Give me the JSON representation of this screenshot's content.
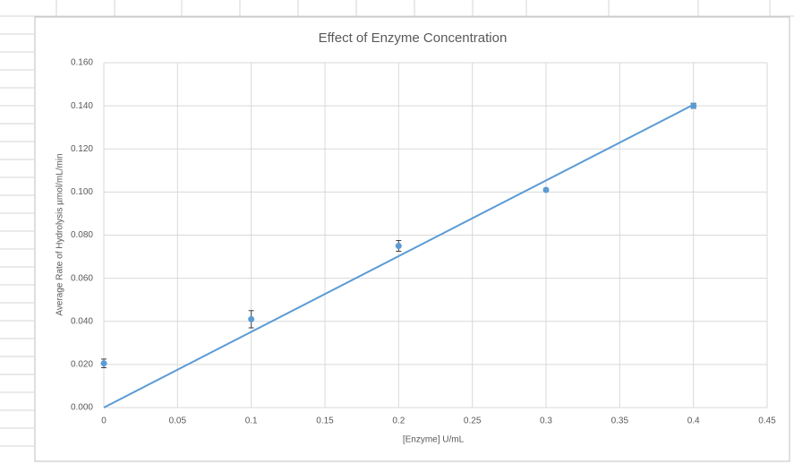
{
  "chart_data": {
    "type": "scatter",
    "title": "Effect of Enzyme Concentration",
    "x_label": "[Enzyme] U/mL",
    "y_label": "Average  Rate of Hydrolysis µmol/mL/min",
    "series": [
      {
        "type": "scatter",
        "color": "#5b9bd5",
        "x": [
          0,
          0.1,
          0.2,
          0.3,
          0.4
        ],
        "values": [
          0.0205,
          0.041,
          0.075,
          0.101,
          0.14
        ],
        "errors": [
          0.002,
          0.004,
          0.0025,
          0,
          0.0012
        ]
      },
      {
        "type": "line",
        "color": "#5b9bd5",
        "x": [
          0,
          0.4
        ],
        "values": [
          0,
          0.1405
        ]
      }
    ],
    "xlim": [
      0,
      0.45
    ],
    "xticks": [
      0,
      0.05,
      0.1,
      0.15,
      0.2,
      0.25,
      0.3,
      0.35,
      0.4,
      0.45
    ],
    "ylim": [
      0,
      0.16
    ],
    "yticks": [
      {
        "value": 0,
        "label": "0.000"
      },
      {
        "value": 0.02,
        "label": "0.020"
      },
      {
        "value": 0.04,
        "label": "0.040"
      },
      {
        "value": 0.06,
        "label": "0.060"
      },
      {
        "value": 0.08,
        "label": "0.080"
      },
      {
        "value": 0.1,
        "label": "0.100"
      },
      {
        "value": 0.12,
        "label": "0.120"
      },
      {
        "value": 0.14,
        "label": "0.140"
      },
      {
        "value": 0.16,
        "label": "0.160"
      }
    ],
    "grid": true
  }
}
